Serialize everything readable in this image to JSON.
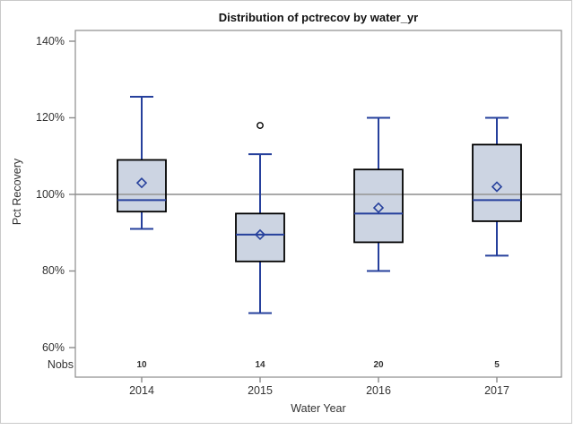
{
  "chart_data": {
    "type": "box",
    "title": "Distribution of pctrecov by water_yr",
    "xlabel": "Water Year",
    "ylabel": "Pct Recovery",
    "nobs_row_label": "Nobs",
    "yaxis": {
      "ticks": [
        {
          "value": 140,
          "label": "140%"
        },
        {
          "value": 120,
          "label": "120%"
        },
        {
          "value": 100,
          "label": "100%"
        },
        {
          "value": 80,
          "label": "80%"
        },
        {
          "value": 60,
          "label": "60%"
        }
      ],
      "ylim": [
        52,
        143
      ],
      "grid": false
    },
    "reference_line_value": 100,
    "groups": [
      {
        "label": "2014",
        "nobs": "10",
        "whisker_low": 91,
        "q1": 95.5,
        "median": 98.5,
        "mean": 103,
        "q3": 109,
        "whisker_high": 125.5,
        "outliers": []
      },
      {
        "label": "2015",
        "nobs": "14",
        "whisker_low": 69,
        "q1": 82.5,
        "median": 89.5,
        "mean": 89.5,
        "q3": 95,
        "whisker_high": 110.5,
        "outliers": [
          118
        ]
      },
      {
        "label": "2016",
        "nobs": "20",
        "whisker_low": 80,
        "q1": 87.5,
        "median": 95,
        "mean": 96.5,
        "q3": 106.5,
        "whisker_high": 120,
        "outliers": []
      },
      {
        "label": "2017",
        "nobs": "5",
        "whisker_low": 84,
        "q1": 93,
        "median": 98.5,
        "mean": 102,
        "q3": 113,
        "whisker_high": 120,
        "outliers": []
      }
    ],
    "colors": {
      "box_fill": "#ccd4e2",
      "box_border": "#000000",
      "whisker": "#26409c",
      "median": "#26409c",
      "mean_marker": "#26409c",
      "reference_line": "#9d9d9d",
      "frame": "#8c8c8c",
      "outlier": "#000000",
      "figure_border": "#c9c9c9",
      "text": "#333333"
    }
  }
}
